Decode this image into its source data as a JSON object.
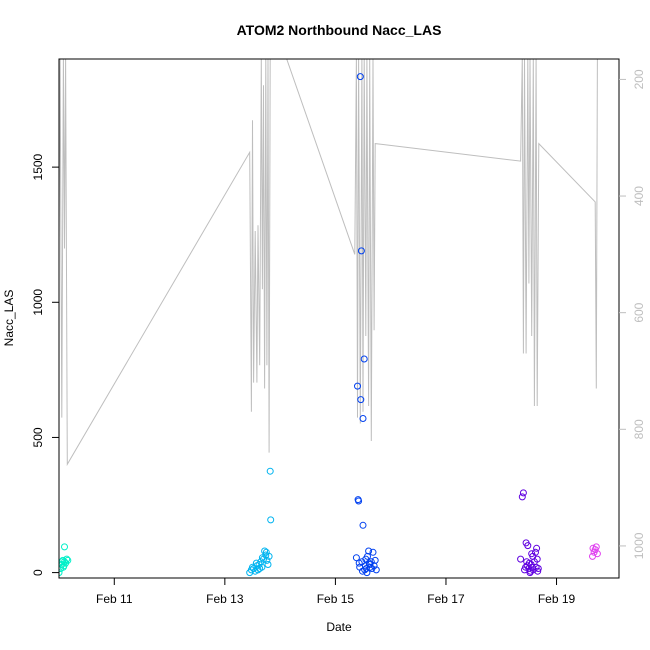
{
  "chart_data": {
    "type": "scatter",
    "title": "ATOM2 Northbound Nacc_LAS",
    "xlabel": "Date",
    "ylabel": "Nacc_LAS",
    "xlim": [
      10.0,
      20.13
    ],
    "ylim": [
      -20,
      1900
    ],
    "y2lim": [
      1055,
      165
    ],
    "x_ticks": [
      {
        "value": 11,
        "label": "Feb 11"
      },
      {
        "value": 13,
        "label": "Feb 13"
      },
      {
        "value": 15,
        "label": "Feb 15"
      },
      {
        "value": 17,
        "label": "Feb 17"
      },
      {
        "value": 19,
        "label": "Feb 19"
      }
    ],
    "y_ticks": [
      0,
      500,
      1000,
      1500
    ],
    "y2_ticks": [
      200,
      400,
      600,
      800,
      1000
    ],
    "grid": false,
    "legend": "none",
    "colors": {
      "line": "#bebebe",
      "axis": "#000000",
      "secondary_axis": "#bebebe"
    },
    "series": [
      {
        "color": "#00f0c8",
        "points": [
          [
            10.0,
            0
          ],
          [
            10.03,
            15
          ],
          [
            10.05,
            30
          ],
          [
            10.07,
            45
          ],
          [
            10.08,
            20
          ],
          [
            10.1,
            95
          ],
          [
            10.1,
            40
          ],
          [
            10.12,
            35
          ],
          [
            10.14,
            50
          ],
          [
            10.16,
            45
          ],
          [
            10.05,
            40
          ],
          [
            10.09,
            25
          ]
        ]
      },
      {
        "color": "#00b4f0",
        "points": [
          [
            13.45,
            0
          ],
          [
            13.48,
            10
          ],
          [
            13.5,
            20
          ],
          [
            13.52,
            15
          ],
          [
            13.55,
            5
          ],
          [
            13.58,
            25
          ],
          [
            13.6,
            10
          ],
          [
            13.62,
            30
          ],
          [
            13.65,
            40
          ],
          [
            13.67,
            20
          ],
          [
            13.7,
            50
          ],
          [
            13.72,
            80
          ],
          [
            13.74,
            65
          ],
          [
            13.76,
            45
          ],
          [
            13.78,
            30
          ],
          [
            13.8,
            60
          ],
          [
            13.82,
            375
          ],
          [
            13.83,
            195
          ],
          [
            13.75,
            75
          ],
          [
            13.68,
            55
          ],
          [
            13.63,
            15
          ],
          [
            13.57,
            35
          ]
        ]
      },
      {
        "color": "#0040f0",
        "points": [
          [
            15.38,
            55
          ],
          [
            15.4,
            690
          ],
          [
            15.41,
            270
          ],
          [
            15.42,
            265
          ],
          [
            15.44,
            20
          ],
          [
            15.45,
            1835
          ],
          [
            15.46,
            640
          ],
          [
            15.47,
            1190
          ],
          [
            15.48,
            40
          ],
          [
            15.5,
            570
          ],
          [
            15.5,
            175
          ],
          [
            15.52,
            790
          ],
          [
            15.53,
            10
          ],
          [
            15.54,
            25
          ],
          [
            15.55,
            50
          ],
          [
            15.56,
            15
          ],
          [
            15.58,
            60
          ],
          [
            15.6,
            80
          ],
          [
            15.62,
            30
          ],
          [
            15.63,
            20
          ],
          [
            15.65,
            40
          ],
          [
            15.66,
            15
          ],
          [
            15.68,
            75
          ],
          [
            15.7,
            25
          ],
          [
            15.72,
            45
          ],
          [
            15.74,
            10
          ],
          [
            15.43,
            35
          ],
          [
            15.49,
            5
          ],
          [
            15.57,
            0
          ],
          [
            15.61,
            35
          ]
        ]
      },
      {
        "color": "#6000e0",
        "points": [
          [
            18.35,
            50
          ],
          [
            18.38,
            280
          ],
          [
            18.4,
            295
          ],
          [
            18.42,
            10
          ],
          [
            18.44,
            20
          ],
          [
            18.45,
            110
          ],
          [
            18.46,
            40
          ],
          [
            18.48,
            100
          ],
          [
            18.5,
            15
          ],
          [
            18.52,
            0
          ],
          [
            18.53,
            5
          ],
          [
            18.54,
            30
          ],
          [
            18.56,
            20
          ],
          [
            18.57,
            60
          ],
          [
            18.58,
            10
          ],
          [
            18.6,
            40
          ],
          [
            18.62,
            75
          ],
          [
            18.63,
            20
          ],
          [
            18.64,
            90
          ],
          [
            18.65,
            50
          ],
          [
            18.66,
            5
          ],
          [
            18.67,
            15
          ],
          [
            18.55,
            70
          ],
          [
            18.47,
            25
          ],
          [
            18.51,
            35
          ]
        ]
      },
      {
        "color": "#e040f0",
        "points": [
          [
            19.65,
            60
          ],
          [
            19.68,
            75
          ],
          [
            19.7,
            85
          ],
          [
            19.72,
            95
          ],
          [
            19.74,
            70
          ],
          [
            19.66,
            90
          ]
        ]
      }
    ],
    "line_series": {
      "color": "#bebebe",
      "axis": "right",
      "points": [
        [
          9.98,
          785
        ],
        [
          10.02,
          160
        ],
        [
          10.05,
          780
        ],
        [
          10.08,
          160
        ],
        [
          10.1,
          490
        ],
        [
          10.12,
          160
        ],
        [
          10.15,
          860
        ],
        [
          13.45,
          325
        ],
        [
          13.48,
          770
        ],
        [
          13.5,
          270
        ],
        [
          13.52,
          720
        ],
        [
          13.55,
          460
        ],
        [
          13.58,
          720
        ],
        [
          13.6,
          450
        ],
        [
          13.63,
          690
        ],
        [
          13.66,
          160
        ],
        [
          13.68,
          560
        ],
        [
          13.7,
          210
        ],
        [
          13.72,
          730
        ],
        [
          13.74,
          160
        ],
        [
          13.76,
          690
        ],
        [
          13.78,
          160
        ],
        [
          13.8,
          840
        ],
        [
          13.82,
          160
        ],
        [
          13.85,
          160
        ],
        [
          14.1,
          160
        ],
        [
          15.35,
          500
        ],
        [
          15.38,
          160
        ],
        [
          15.4,
          780
        ],
        [
          15.42,
          160
        ],
        [
          15.45,
          790
        ],
        [
          15.48,
          160
        ],
        [
          15.5,
          770
        ],
        [
          15.52,
          160
        ],
        [
          15.55,
          640
        ],
        [
          15.57,
          160
        ],
        [
          15.6,
          760
        ],
        [
          15.62,
          160
        ],
        [
          15.65,
          820
        ],
        [
          15.68,
          160
        ],
        [
          15.7,
          630
        ],
        [
          15.72,
          310
        ],
        [
          18.35,
          340
        ],
        [
          18.38,
          160
        ],
        [
          18.4,
          670
        ],
        [
          18.42,
          160
        ],
        [
          18.45,
          670
        ],
        [
          18.48,
          160
        ],
        [
          18.5,
          550
        ],
        [
          18.52,
          160
        ],
        [
          18.55,
          640
        ],
        [
          18.58,
          160
        ],
        [
          18.6,
          760
        ],
        [
          18.63,
          160
        ],
        [
          18.65,
          760
        ],
        [
          18.68,
          310
        ],
        [
          19.7,
          410
        ],
        [
          19.72,
          730
        ],
        [
          19.74,
          160
        ]
      ]
    }
  }
}
